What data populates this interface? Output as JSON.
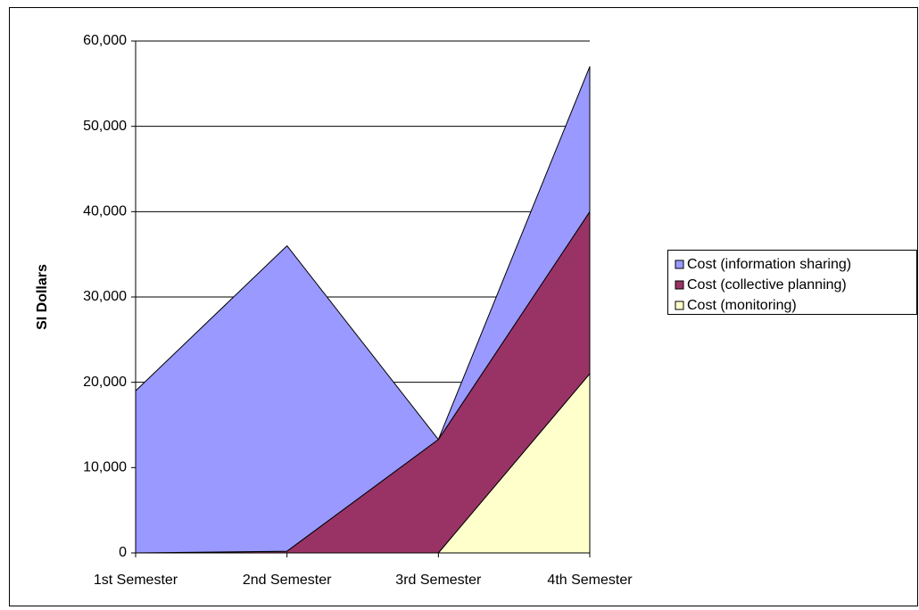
{
  "chart_data": {
    "type": "stacked_area",
    "y_label": "SI Dollars",
    "categories": [
      "1st Semester",
      "2nd Semester",
      "3rd Semester",
      "4th Semester"
    ],
    "series": [
      {
        "name": "Cost (information sharing)",
        "color": "#9999ff",
        "values": [
          19000,
          35800,
          0,
          17000
        ]
      },
      {
        "name": "Cost (collective planning)",
        "color": "#993366",
        "values": [
          0,
          200,
          13300,
          19000
        ]
      },
      {
        "name": "Cost (monitoring)",
        "color": "#ffffcc",
        "values": [
          0,
          0,
          0,
          21000
        ]
      }
    ],
    "ylim": [
      0,
      60000
    ],
    "yticks": [
      0,
      {
        "value": 10000,
        "label": "10,000"
      },
      {
        "value": 20000,
        "label": "20,000"
      },
      {
        "value": 30000,
        "label": "30,000"
      },
      {
        "value": 40000,
        "label": "40,000"
      },
      {
        "value": 50000,
        "label": "50,000"
      },
      {
        "value": 60000,
        "label": "60,000"
      }
    ],
    "grid": true,
    "legend": "right"
  }
}
